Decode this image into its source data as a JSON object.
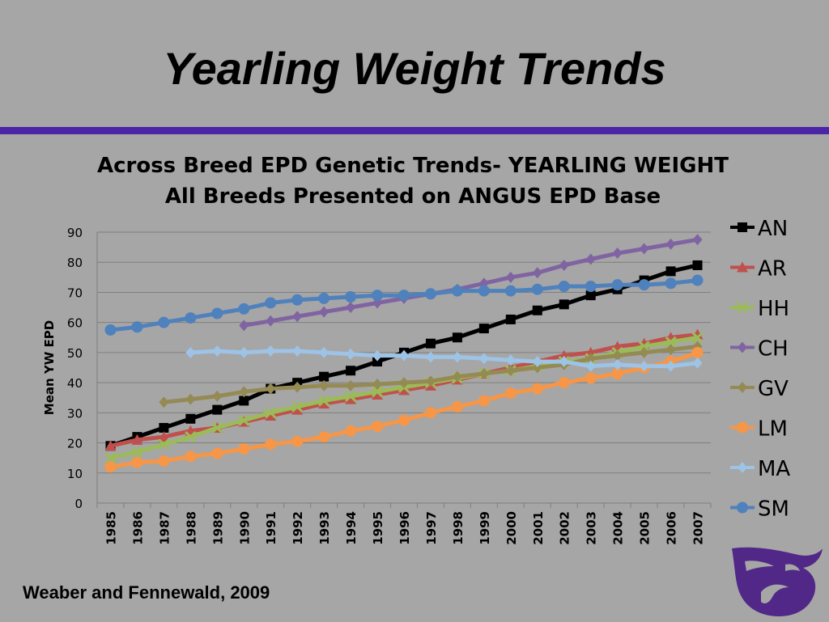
{
  "slide": {
    "title": "Yearling Weight Trends",
    "footer": "Weaber and Fennewald, 2009"
  },
  "colors": {
    "background": "#a6a6a6",
    "accent_rule": "#4b25a8",
    "logo": "#512888"
  },
  "logo_icon": "powercat-icon",
  "chart_data": {
    "type": "line",
    "title": "Across Breed EPD Genetic Trends- YEARLING WEIGHT",
    "subtitle": "All Breeds Presented on ANGUS EPD Base",
    "xlabel": "",
    "ylabel": "Mean YW EPD",
    "ylim": [
      0,
      90
    ],
    "yticks": [
      0,
      10,
      20,
      30,
      40,
      50,
      60,
      70,
      80,
      90
    ],
    "grid": true,
    "legend": "right",
    "x": [
      "1985",
      "1986",
      "1987",
      "1988",
      "1989",
      "1990",
      "1991",
      "1992",
      "1993",
      "1994",
      "1995",
      "1996",
      "1997",
      "1998",
      "1999",
      "2000",
      "2001",
      "2002",
      "2003",
      "2004",
      "2005",
      "2006",
      "2007"
    ],
    "series": [
      {
        "name": "AN",
        "color": "#000000",
        "marker": "square",
        "values": [
          19,
          22,
          25,
          28,
          31,
          34,
          38,
          40,
          42,
          44,
          47,
          50,
          53,
          55,
          58,
          61,
          64,
          66,
          69,
          71,
          74,
          77,
          79
        ]
      },
      {
        "name": "AR",
        "color": "#c0504d",
        "marker": "triangle",
        "values": [
          19,
          21,
          22,
          24,
          25,
          27,
          29,
          31,
          33,
          34.5,
          36,
          37.5,
          39,
          41,
          43,
          45,
          47,
          49,
          50,
          52,
          53,
          55,
          56
        ]
      },
      {
        "name": "HH",
        "color": "#9bbb59",
        "marker": "x",
        "values": [
          15,
          17,
          19.5,
          22,
          25,
          27.5,
          30,
          32,
          34,
          35.5,
          37,
          38.5,
          40,
          41.5,
          43,
          44,
          45.5,
          47,
          48,
          50,
          52,
          53.5,
          55
        ]
      },
      {
        "name": "CH",
        "color": "#8064a2",
        "marker": "diamond",
        "values": [
          null,
          null,
          null,
          null,
          null,
          59,
          60.5,
          62,
          63.5,
          65,
          66.5,
          68,
          69.5,
          71,
          73,
          75,
          76.5,
          79,
          81,
          83,
          84.5,
          86,
          87.5
        ]
      },
      {
        "name": "GV",
        "color": "#948a54",
        "marker": "diamond",
        "values": [
          null,
          null,
          33.5,
          34.5,
          35.5,
          37,
          38,
          38.5,
          39,
          39,
          39.5,
          40,
          40.5,
          42,
          43,
          44,
          45,
          46,
          48,
          49,
          50,
          51,
          52
        ]
      },
      {
        "name": "LM",
        "color": "#f79646",
        "marker": "circle",
        "values": [
          12,
          13.5,
          14,
          15.5,
          16.5,
          18,
          19.5,
          20.5,
          22,
          24,
          25.5,
          27.5,
          30,
          32,
          34,
          36.5,
          38,
          40,
          41.5,
          43,
          45,
          47,
          50
        ]
      },
      {
        "name": "MA",
        "color": "#9dc3e6",
        "marker": "diamond",
        "values": [
          null,
          null,
          null,
          50,
          50.5,
          50,
          50.5,
          50.5,
          50,
          49.5,
          49,
          49,
          48.5,
          48.5,
          48,
          47.5,
          47,
          47,
          45.5,
          46,
          45.5,
          45.5,
          46.5
        ]
      },
      {
        "name": "SM",
        "color": "#4f81bd",
        "marker": "circle",
        "values": [
          57.5,
          58.5,
          60,
          61.5,
          63,
          64.5,
          66.5,
          67.5,
          68,
          68.5,
          69,
          69,
          69.5,
          70.5,
          70.5,
          70.5,
          71,
          72,
          72,
          72.5,
          72.5,
          73,
          74
        ]
      }
    ]
  }
}
